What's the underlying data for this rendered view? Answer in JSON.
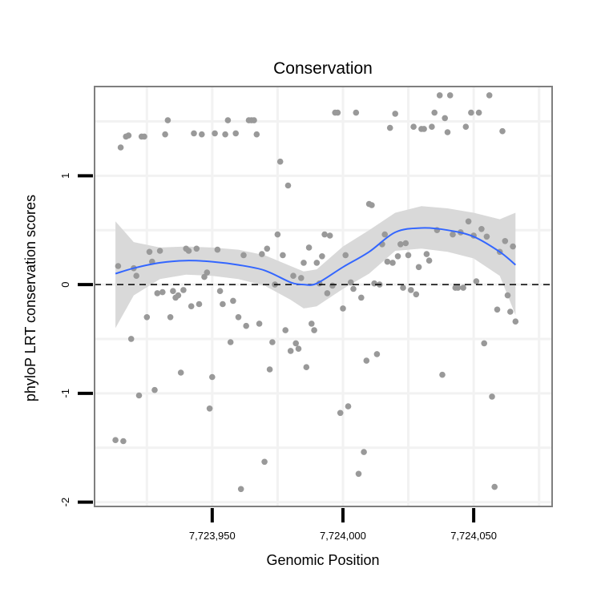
{
  "chart_data": {
    "type": "scatter",
    "title": "Conservation",
    "xlabel": "Genomic Position",
    "ylabel": "phyloP LRT conservation scores",
    "xlim": [
      7723905,
      7724080
    ],
    "ylim": [
      -2.04,
      1.82
    ],
    "x_ticks": [
      {
        "value": 7723950,
        "label": "7,723,950"
      },
      {
        "value": 7724000,
        "label": "7,724,000"
      },
      {
        "value": 7724050,
        "label": "7,724,050"
      }
    ],
    "y_ticks": [
      {
        "value": -2,
        "label": "-2"
      },
      {
        "value": -1,
        "label": "-1"
      },
      {
        "value": 0,
        "label": "0"
      },
      {
        "value": 1,
        "label": "1"
      }
    ],
    "reference_line": {
      "y": 0,
      "style": "dashed"
    },
    "colors": {
      "points": "#999999",
      "smooth": "#3366ff",
      "band": "#d9d9d9",
      "frame": "#7f7f7f",
      "grid": "#f2f2f2"
    },
    "series": [
      {
        "name": "scores",
        "points": [
          [
            7723913,
            -1.43
          ],
          [
            7723914,
            0.17
          ],
          [
            7723915,
            1.26
          ],
          [
            7723916,
            -1.44
          ],
          [
            7723917,
            1.36
          ],
          [
            7723918,
            1.37
          ],
          [
            7723919,
            -0.5
          ],
          [
            7723920,
            0.15
          ],
          [
            7723921,
            0.08
          ],
          [
            7723922,
            -1.02
          ],
          [
            7723923,
            1.36
          ],
          [
            7723924,
            1.36
          ],
          [
            7723925,
            -0.3
          ],
          [
            7723926,
            0.3
          ],
          [
            7723927,
            0.21
          ],
          [
            7723928,
            -0.97
          ],
          [
            7723929,
            -0.08
          ],
          [
            7723930,
            0.31
          ],
          [
            7723931,
            -0.07
          ],
          [
            7723932,
            1.38
          ],
          [
            7723933,
            1.51
          ],
          [
            7723934,
            -0.3
          ],
          [
            7723935,
            -0.06
          ],
          [
            7723936,
            -0.12
          ],
          [
            7723937,
            -0.1
          ],
          [
            7723938,
            -0.81
          ],
          [
            7723939,
            -0.05
          ],
          [
            7723940,
            0.33
          ],
          [
            7723941,
            0.31
          ],
          [
            7723942,
            -0.2
          ],
          [
            7723943,
            1.39
          ],
          [
            7723944,
            0.33
          ],
          [
            7723945,
            -0.18
          ],
          [
            7723946,
            1.38
          ],
          [
            7723947,
            0.07
          ],
          [
            7723948,
            0.11
          ],
          [
            7723949,
            -1.14
          ],
          [
            7723950,
            -0.85
          ],
          [
            7723951,
            1.39
          ],
          [
            7723952,
            0.32
          ],
          [
            7723953,
            -0.06
          ],
          [
            7723954,
            -0.18
          ],
          [
            7723955,
            1.38
          ],
          [
            7723956,
            1.51
          ],
          [
            7723957,
            -0.53
          ],
          [
            7723958,
            -0.15
          ],
          [
            7723959,
            1.39
          ],
          [
            7723960,
            -0.3
          ],
          [
            7723961,
            -1.88
          ],
          [
            7723962,
            0.27
          ],
          [
            7723963,
            -0.38
          ],
          [
            7723964,
            1.51
          ],
          [
            7723965,
            1.51
          ],
          [
            7723966,
            1.51
          ],
          [
            7723967,
            1.38
          ],
          [
            7723968,
            -0.36
          ],
          [
            7723969,
            0.28
          ],
          [
            7723970,
            -1.63
          ],
          [
            7723971,
            0.33
          ],
          [
            7723972,
            -0.78
          ],
          [
            7723973,
            -0.53
          ],
          [
            7723974,
            0.0
          ],
          [
            7723975,
            0.46
          ],
          [
            7723976,
            1.13
          ],
          [
            7723977,
            0.27
          ],
          [
            7723978,
            -0.42
          ],
          [
            7723979,
            0.91
          ],
          [
            7723980,
            -0.61
          ],
          [
            7723981,
            0.08
          ],
          [
            7723982,
            -0.54
          ],
          [
            7723983,
            -0.59
          ],
          [
            7723984,
            0.06
          ],
          [
            7723985,
            0.2
          ],
          [
            7723986,
            -0.76
          ],
          [
            7723987,
            0.34
          ],
          [
            7723988,
            -0.36
          ],
          [
            7723989,
            -0.42
          ],
          [
            7723990,
            0.2
          ],
          [
            7723991,
            0.01
          ],
          [
            7723992,
            0.26
          ],
          [
            7723993,
            0.46
          ],
          [
            7723994,
            -0.08
          ],
          [
            7723995,
            0.45
          ],
          [
            7723996,
            -0.01
          ],
          [
            7723997,
            1.58
          ],
          [
            7723998,
            1.58
          ],
          [
            7723999,
            -1.18
          ],
          [
            7724000,
            -0.22
          ],
          [
            7724001,
            0.27
          ],
          [
            7724002,
            -1.12
          ],
          [
            7724003,
            0.02
          ],
          [
            7724004,
            -0.04
          ],
          [
            7724005,
            1.58
          ],
          [
            7724006,
            -1.74
          ],
          [
            7724007,
            -0.12
          ],
          [
            7724008,
            -1.54
          ],
          [
            7724009,
            -0.7
          ],
          [
            7724010,
            0.74
          ],
          [
            7724011,
            0.73
          ],
          [
            7724012,
            0.01
          ],
          [
            7724013,
            -0.64
          ],
          [
            7724014,
            0.0
          ],
          [
            7724015,
            0.37
          ],
          [
            7724016,
            0.46
          ],
          [
            7724017,
            0.21
          ],
          [
            7724018,
            1.44
          ],
          [
            7724019,
            0.2
          ],
          [
            7724020,
            1.57
          ],
          [
            7724021,
            0.26
          ],
          [
            7724022,
            0.37
          ],
          [
            7724023,
            -0.03
          ],
          [
            7724024,
            0.38
          ],
          [
            7724025,
            0.27
          ],
          [
            7724026,
            -0.05
          ],
          [
            7724027,
            1.45
          ],
          [
            7724028,
            -0.09
          ],
          [
            7724029,
            0.16
          ],
          [
            7724030,
            1.43
          ],
          [
            7724031,
            1.43
          ],
          [
            7724032,
            0.28
          ],
          [
            7724033,
            0.22
          ],
          [
            7724034,
            1.45
          ],
          [
            7724035,
            1.58
          ],
          [
            7724036,
            0.5
          ],
          [
            7724037,
            1.74
          ],
          [
            7724038,
            -0.83
          ],
          [
            7724039,
            1.53
          ],
          [
            7724040,
            1.4
          ],
          [
            7724041,
            1.74
          ],
          [
            7724042,
            0.46
          ],
          [
            7724043,
            -0.03
          ],
          [
            7724044,
            -0.03
          ],
          [
            7724045,
            0.48
          ],
          [
            7724046,
            -0.03
          ],
          [
            7724047,
            1.45
          ],
          [
            7724048,
            0.58
          ],
          [
            7724049,
            1.58
          ],
          [
            7724050,
            0.45
          ],
          [
            7724051,
            0.03
          ],
          [
            7724052,
            1.58
          ],
          [
            7724053,
            0.51
          ],
          [
            7724054,
            -0.54
          ],
          [
            7724055,
            0.44
          ],
          [
            7724056,
            1.74
          ],
          [
            7724057,
            -1.03
          ],
          [
            7724058,
            -1.86
          ],
          [
            7724059,
            -0.23
          ],
          [
            7724060,
            0.3
          ],
          [
            7724061,
            1.41
          ],
          [
            7724062,
            0.4
          ],
          [
            7724063,
            -0.1
          ],
          [
            7724064,
            -0.25
          ],
          [
            7724065,
            0.35
          ],
          [
            7724066,
            -0.34
          ]
        ],
        "smooth": {
          "method": "loess",
          "x": [
            7723913,
            7723920,
            7723930,
            7723940,
            7723950,
            7723960,
            7723970,
            7723980,
            7723985,
            7723990,
            7724000,
            7724010,
            7724020,
            7724030,
            7724040,
            7724050,
            7724060,
            7724066
          ],
          "fit": [
            0.1,
            0.15,
            0.2,
            0.22,
            0.21,
            0.18,
            0.13,
            0.02,
            0.0,
            0.01,
            0.16,
            0.3,
            0.48,
            0.52,
            0.5,
            0.44,
            0.3,
            0.18
          ],
          "lower": [
            -0.4,
            -0.1,
            0.05,
            0.09,
            0.08,
            0.05,
            -0.01,
            -0.14,
            -0.22,
            -0.2,
            -0.04,
            0.1,
            0.31,
            0.33,
            0.3,
            0.24,
            0.08,
            -0.28
          ],
          "upper": [
            0.58,
            0.39,
            0.34,
            0.35,
            0.34,
            0.32,
            0.27,
            0.17,
            0.12,
            0.14,
            0.35,
            0.5,
            0.66,
            0.72,
            0.7,
            0.66,
            0.6,
            0.66
          ]
        }
      }
    ]
  }
}
